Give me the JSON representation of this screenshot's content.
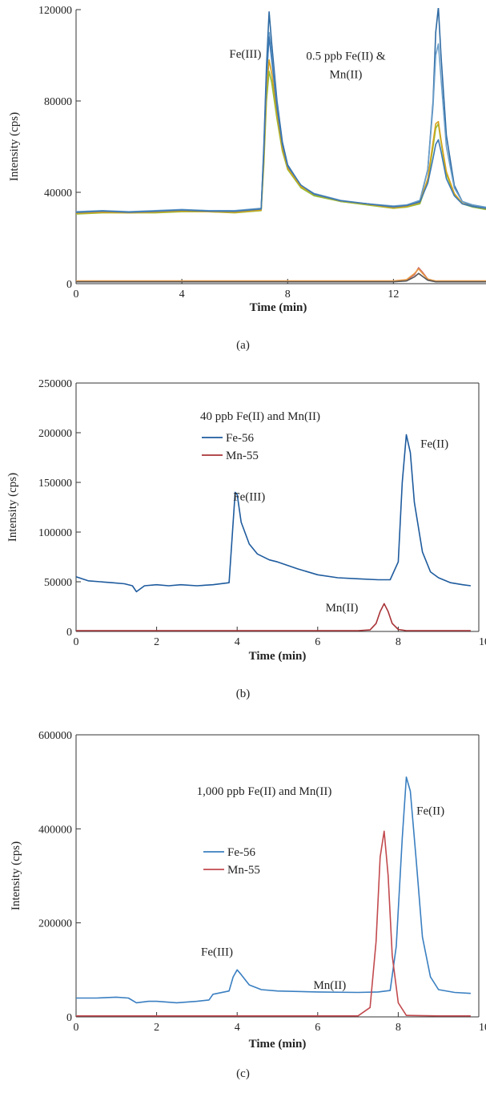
{
  "chart_data": [
    {
      "type": "line",
      "panel_label": "(a)",
      "xlabel": "Time (min)",
      "ylabel": "Intensity (cps)",
      "xlim": [
        0,
        15.5
      ],
      "ylim": [
        0,
        120000
      ],
      "xticks": [
        0,
        4,
        8,
        12
      ],
      "yticks": [
        0,
        40000,
        80000,
        120000
      ],
      "xtick_labels": [
        "0",
        "4",
        "8",
        "12"
      ],
      "ytick_labels": [
        "0",
        "40000",
        "80000",
        "120000"
      ],
      "grid": false,
      "legend": null,
      "annotations": [
        {
          "text": "Fe(III)",
          "x": 6.4,
          "y": 99000
        },
        {
          "text": "0.5 ppb Fe(II) &",
          "x": 10.2,
          "y": 98000
        },
        {
          "text": "Mn(II)",
          "x": 10.2,
          "y": 90000
        }
      ],
      "series": [
        {
          "color": "#2e6aa3",
          "x": [
            0,
            1,
            2,
            3,
            4,
            5,
            6,
            7,
            7.1,
            7.2,
            7.3,
            7.4,
            7.6,
            7.8,
            8,
            8.5,
            9,
            10,
            11,
            12,
            12.5,
            13,
            13.3,
            13.5,
            13.6,
            13.7,
            13.8,
            14,
            14.3,
            14.6,
            15,
            15.5
          ],
          "y": [
            31000,
            31500,
            31000,
            31500,
            32000,
            31500,
            31500,
            32500,
            60000,
            95000,
            119000,
            105000,
            80000,
            62000,
            52000,
            43000,
            39000,
            36000,
            35000,
            33500,
            34000,
            36000,
            50000,
            80000,
            110000,
            121000,
            100000,
            65000,
            43000,
            36000,
            34000,
            33000
          ]
        },
        {
          "color": "#6a9ec9",
          "x": [
            0,
            1,
            2,
            3,
            4,
            5,
            6,
            7,
            7.1,
            7.2,
            7.3,
            7.4,
            7.6,
            7.8,
            8,
            8.5,
            9,
            10,
            11,
            12,
            12.5,
            13,
            13.3,
            13.5,
            13.6,
            13.7,
            13.8,
            14,
            14.3,
            14.6,
            15,
            15.5
          ],
          "y": [
            31500,
            32000,
            31500,
            32000,
            32500,
            32000,
            32000,
            33000,
            55000,
            88000,
            110000,
            100000,
            78000,
            60000,
            51000,
            43000,
            39500,
            36500,
            35000,
            34000,
            34500,
            36500,
            50000,
            78000,
            100000,
            105000,
            90000,
            60000,
            42000,
            36000,
            34500,
            33500
          ]
        },
        {
          "color": "#8dbf3a",
          "x": [
            0,
            1,
            2,
            3,
            4,
            5,
            6,
            7,
            7.1,
            7.2,
            7.3,
            7.4,
            7.6,
            7.8,
            8,
            8.5,
            9,
            10,
            11,
            12,
            12.5,
            13,
            13.3,
            13.5,
            13.6,
            13.7,
            13.8,
            14,
            14.3,
            14.6,
            15,
            15.5
          ],
          "y": [
            30500,
            31000,
            31000,
            31000,
            31500,
            31500,
            31000,
            32000,
            52000,
            80000,
            93000,
            88000,
            72000,
            58000,
            50000,
            42000,
            38500,
            36000,
            34500,
            33000,
            33500,
            35000,
            45000,
            60000,
            68000,
            70000,
            62000,
            48000,
            39000,
            35000,
            33500,
            32500
          ]
        },
        {
          "color": "#d8a21c",
          "x": [
            0,
            1,
            2,
            3,
            4,
            5,
            6,
            7,
            7.1,
            7.2,
            7.3,
            7.4,
            7.6,
            7.8,
            8,
            8.5,
            9,
            10,
            11,
            12,
            12.5,
            13,
            13.3,
            13.5,
            13.6,
            13.7,
            13.8,
            14,
            14.3,
            14.6,
            15,
            15.5
          ],
          "y": [
            30800,
            31200,
            31000,
            31300,
            31800,
            31500,
            31200,
            32200,
            54000,
            84000,
            98000,
            92000,
            74000,
            59000,
            50500,
            42500,
            39000,
            36200,
            34800,
            33200,
            33800,
            35500,
            46000,
            62000,
            70000,
            71000,
            63000,
            49000,
            39500,
            35200,
            33800,
            32800
          ]
        },
        {
          "color": "#3b78b3",
          "x": [
            0,
            1,
            2,
            3,
            4,
            5,
            6,
            7,
            7.1,
            7.2,
            7.3,
            7.4,
            7.6,
            7.8,
            8,
            8.5,
            9,
            10,
            11,
            12,
            12.5,
            13,
            13.3,
            13.5,
            13.6,
            13.7,
            13.8,
            14,
            14.3,
            14.6,
            15,
            15.5
          ],
          "y": [
            31200,
            31800,
            31300,
            31700,
            32200,
            31800,
            31700,
            32700,
            58000,
            91000,
            108000,
            98000,
            77000,
            61000,
            51500,
            43200,
            39200,
            36300,
            35000,
            33600,
            34200,
            35800,
            44000,
            55000,
            61000,
            63000,
            58000,
            46000,
            38500,
            35000,
            33800,
            33000
          ]
        },
        {
          "color": "#c95f5f",
          "x": [
            0,
            2,
            4,
            6,
            8,
            10,
            12,
            12.5,
            12.8,
            12.95,
            13.1,
            13.3,
            13.6,
            14,
            15.5
          ],
          "y": [
            1000,
            1000,
            1000,
            1000,
            1000,
            1000,
            1000,
            1500,
            4000,
            7000,
            5000,
            2000,
            1000,
            1000,
            1000
          ]
        },
        {
          "color": "#e89a46",
          "x": [
            0,
            2,
            4,
            6,
            8,
            10,
            12,
            12.5,
            12.8,
            12.95,
            13.1,
            13.3,
            13.6,
            14,
            15.5
          ],
          "y": [
            1200,
            1200,
            1200,
            1200,
            1200,
            1200,
            1200,
            1800,
            4500,
            6500,
            4500,
            2000,
            1200,
            1200,
            1200
          ]
        },
        {
          "color": "#555555",
          "x": [
            0,
            2,
            4,
            6,
            8,
            10,
            12,
            12.5,
            12.8,
            12.95,
            13.1,
            13.3,
            13.6,
            14,
            15.5
          ],
          "y": [
            800,
            800,
            800,
            800,
            800,
            800,
            800,
            1200,
            3000,
            4500,
            3200,
            1500,
            800,
            800,
            800
          ]
        }
      ]
    },
    {
      "type": "line",
      "panel_label": "(b)",
      "xlabel": "Time (min)",
      "ylabel": "Intensity (cps)",
      "xlim": [
        0,
        10
      ],
      "ylim": [
        0,
        250000
      ],
      "xticks": [
        0,
        2,
        4,
        6,
        8,
        10
      ],
      "yticks": [
        0,
        50000,
        100000,
        150000,
        200000,
        250000
      ],
      "xtick_labels": [
        "0",
        "2",
        "4",
        "6",
        "8",
        "10"
      ],
      "ytick_labels": [
        "0",
        "50000",
        "100000",
        "150000",
        "200000",
        "250000"
      ],
      "grid": false,
      "title": "40 ppb Fe(II) and Mn(II)",
      "legend": {
        "placement": "top-left"
      },
      "annotations": [
        {
          "text": "Fe(III)",
          "x": 4.3,
          "y": 132000
        },
        {
          "text": "Fe(II)",
          "x": 8.9,
          "y": 185000
        },
        {
          "text": "Mn(II)",
          "x": 6.6,
          "y": 20000
        }
      ],
      "series": [
        {
          "name": "Fe-56",
          "color": "#1e5b9e",
          "x": [
            0,
            0.3,
            0.6,
            0.9,
            1.2,
            1.4,
            1.5,
            1.7,
            2.0,
            2.3,
            2.6,
            3.0,
            3.4,
            3.8,
            3.9,
            3.95,
            4.0,
            4.1,
            4.3,
            4.5,
            4.8,
            5.0,
            5.5,
            6.0,
            6.5,
            7.0,
            7.5,
            7.8,
            8.0,
            8.1,
            8.2,
            8.3,
            8.4,
            8.6,
            8.8,
            9.0,
            9.3,
            9.6,
            9.8
          ],
          "y": [
            55000,
            51000,
            50000,
            49000,
            48000,
            46000,
            40000,
            46000,
            47000,
            46000,
            47000,
            46000,
            47000,
            49000,
            110000,
            140000,
            138000,
            110000,
            88000,
            78000,
            72000,
            70000,
            63000,
            57000,
            54000,
            53000,
            52000,
            52000,
            70000,
            150000,
            198000,
            180000,
            130000,
            80000,
            60000,
            54000,
            49000,
            47000,
            46000
          ]
        },
        {
          "name": "Mn-55",
          "color": "#a83236",
          "x": [
            0,
            1,
            2,
            3,
            4,
            5,
            6,
            7,
            7.3,
            7.45,
            7.55,
            7.65,
            7.75,
            7.85,
            8.0,
            8.2,
            9,
            9.8
          ],
          "y": [
            800,
            800,
            800,
            800,
            800,
            800,
            800,
            800,
            1500,
            8000,
            20000,
            28000,
            20000,
            8000,
            2000,
            800,
            800,
            800
          ]
        }
      ]
    },
    {
      "type": "line",
      "panel_label": "(c)",
      "xlabel": "Time (min)",
      "ylabel": "Intensity (cps)",
      "xlim": [
        0,
        10
      ],
      "ylim": [
        0,
        600000
      ],
      "xticks": [
        0,
        2,
        4,
        6,
        8,
        10
      ],
      "yticks": [
        0,
        200000,
        400000,
        600000
      ],
      "xtick_labels": [
        "0",
        "2",
        "4",
        "6",
        "8",
        "10"
      ],
      "ytick_labels": [
        "0",
        "200000",
        "400000",
        "600000"
      ],
      "grid": false,
      "title": "1,000 ppb Fe(II) and Mn(II)",
      "legend": {
        "placement": "center-left"
      },
      "annotations": [
        {
          "text": "Fe(III)",
          "x": 3.5,
          "y": 130000
        },
        {
          "text": "Fe(II)",
          "x": 8.8,
          "y": 430000
        },
        {
          "text": "Mn(II)",
          "x": 6.3,
          "y": 60000
        }
      ],
      "series": [
        {
          "name": "Fe-56",
          "color": "#3a7fc1",
          "x": [
            0,
            0.5,
            1.0,
            1.3,
            1.5,
            1.8,
            2.0,
            2.5,
            3.0,
            3.3,
            3.4,
            3.8,
            3.9,
            4.0,
            4.1,
            4.3,
            4.6,
            5.0,
            6.0,
            7.0,
            7.5,
            7.8,
            7.95,
            8.1,
            8.2,
            8.3,
            8.45,
            8.6,
            8.8,
            9.0,
            9.4,
            9.8
          ],
          "y": [
            40000,
            40000,
            42000,
            40000,
            30000,
            33000,
            33000,
            30000,
            33000,
            36000,
            48000,
            55000,
            85000,
            100000,
            90000,
            68000,
            58000,
            55000,
            53000,
            52000,
            53000,
            56000,
            150000,
            380000,
            510000,
            480000,
            330000,
            170000,
            85000,
            58000,
            52000,
            50000
          ]
        },
        {
          "name": "Mn-55",
          "color": "#c24a4e",
          "x": [
            0,
            1,
            2,
            3,
            4,
            5,
            6,
            7,
            7.3,
            7.45,
            7.55,
            7.65,
            7.75,
            7.85,
            8.0,
            8.2,
            9,
            9.8
          ],
          "y": [
            2000,
            2000,
            2000,
            2000,
            2000,
            2000,
            2000,
            2000,
            20000,
            160000,
            340000,
            395000,
            300000,
            130000,
            30000,
            3000,
            2000,
            2000
          ]
        }
      ]
    }
  ]
}
